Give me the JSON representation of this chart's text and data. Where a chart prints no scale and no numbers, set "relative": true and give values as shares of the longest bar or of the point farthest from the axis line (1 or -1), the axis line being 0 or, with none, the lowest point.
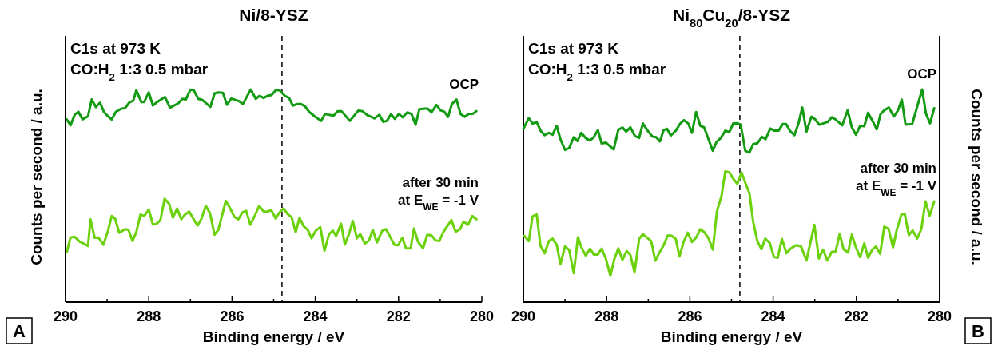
{
  "chart_data": [
    {
      "type": "line",
      "title": "Ni/8-YSZ",
      "xlabel": "Binding energy / eV",
      "ylabel": "Counts per second / a.u.",
      "relative": true,
      "annotations": [
        "C1s at 973 K",
        "CO:H$_{2}$ 1:3 0.5 mbar",
        "A"
      ],
      "xlim": [
        290,
        280
      ],
      "xticks": [
        290,
        {
          "value": 289,
          "label": null
        },
        288,
        {
          "value": 287,
          "label": null
        },
        286,
        {
          "value": 285,
          "label": null
        },
        284,
        {
          "value": 283,
          "label": null
        },
        282,
        {
          "value": 281,
          "label": null
        },
        280
      ],
      "ref_lines": [
        {
          "axis": "x",
          "value": 284.8,
          "line_style": "dashed",
          "color": "#000000"
        }
      ],
      "series": [
        {
          "name": "OCP",
          "color": "#129a12",
          "x": [
            289.97,
            289.88,
            289.78,
            289.69,
            289.59,
            289.46,
            289.37,
            289.27,
            289.17,
            289.08,
            288.98,
            288.89,
            288.79,
            288.66,
            288.57,
            288.47,
            288.37,
            288.3,
            288.18,
            288.11,
            288.0,
            287.9,
            287.8,
            287.61,
            287.49,
            287.29,
            287.19,
            287.11,
            287.0,
            286.92,
            286.81,
            286.71,
            286.52,
            286.42,
            286.33,
            286.22,
            286.12,
            286.02,
            285.83,
            285.74,
            285.55,
            285.43,
            285.34,
            285.24,
            285.14,
            285.05,
            284.95,
            284.86,
            284.73,
            284.63,
            284.54,
            284.44,
            284.34,
            284.25,
            284.15,
            284.02,
            283.86,
            283.77,
            283.56,
            283.46,
            283.37,
            283.17,
            282.97,
            282.87,
            282.74,
            282.58,
            282.46,
            282.37,
            282.28,
            282.18,
            282.09,
            281.99,
            281.9,
            281.79,
            281.69,
            281.59,
            281.5,
            281.37,
            281.3,
            281.21,
            281.09,
            280.99,
            280.9,
            280.81,
            280.72,
            280.61,
            280.51,
            280.41,
            280.31,
            280.22,
            280.13
          ],
          "values": [
            0.859,
            0.831,
            0.881,
            0.895,
            0.859,
            0.874,
            0.953,
            0.917,
            0.938,
            0.895,
            0.874,
            0.859,
            0.895,
            0.91,
            0.912,
            0.938,
            0.948,
            0.996,
            0.941,
            0.941,
            0.986,
            0.924,
            0.941,
            0.964,
            0.914,
            0.935,
            0.956,
            0.953,
            0.999,
            0.996,
            0.956,
            0.95,
            0.918,
            0.981,
            0.986,
            0.984,
            0.928,
            0.957,
            0.945,
            0.931,
            1,
            0.956,
            0.97,
            0.96,
            0.971,
            0.974,
            0.996,
            0.996,
            0.97,
            0.96,
            0.924,
            0.931,
            0.931,
            0.921,
            0.895,
            0.874,
            0.852,
            0.884,
            0.877,
            0.898,
            0.898,
            0.852,
            0.9,
            0.898,
            0.878,
            0.864,
            0.881,
            0.848,
            0.852,
            0.884,
            0.862,
            0.885,
            0.869,
            0.892,
            0.885,
            0.834,
            0.907,
            0.91,
            0.91,
            0.892,
            0.927,
            0.902,
            0.895,
            0.871,
            0.931,
            0.953,
            0.884,
            0.871,
            0.885,
            0.885,
            0.898
          ]
        },
        {
          "name": "after 30 min\nat E$_{WE}$ = -1 V",
          "color": "#6bd10b",
          "x": [
            289.97,
            289.88,
            289.78,
            289.65,
            289.56,
            289.46,
            289.4,
            289.3,
            289.21,
            289.09,
            288.98,
            288.89,
            288.81,
            288.71,
            288.57,
            288.49,
            288.39,
            288.3,
            288.2,
            288.11,
            288.0,
            287.9,
            287.81,
            287.72,
            287.62,
            287.51,
            287.42,
            287.32,
            287.22,
            287.13,
            287.03,
            286.92,
            286.83,
            286.74,
            286.63,
            286.53,
            286.42,
            286.33,
            286.15,
            286.04,
            285.94,
            285.85,
            285.75,
            285.66,
            285.56,
            285.44,
            285.35,
            285.24,
            285.14,
            285.06,
            284.95,
            284.86,
            284.76,
            284.66,
            284.57,
            284.47,
            284.38,
            284.28,
            284.18,
            284.09,
            283.99,
            283.88,
            283.78,
            283.67,
            283.58,
            283.5,
            283.38,
            283.29,
            283.19,
            283.1,
            283.0,
            282.92,
            282.81,
            282.71,
            282.62,
            282.52,
            282.39,
            282.3,
            282.1,
            282.01,
            281.91,
            281.82,
            281.71,
            281.63,
            281.53,
            281.41,
            281.31,
            281.21,
            281.11,
            281.02,
            280.92,
            280.73,
            280.63,
            280.52,
            280.44,
            280.33,
            280.23,
            280.13
          ],
          "values": [
            0.235,
            0.304,
            0.307,
            0.283,
            0.275,
            0.264,
            0.389,
            0.303,
            0.304,
            0.27,
            0.336,
            0.405,
            0.393,
            0.326,
            0.343,
            0.34,
            0.288,
            0.329,
            0.412,
            0.405,
            0.436,
            0.364,
            0.369,
            0.386,
            0.486,
            0.462,
            0.397,
            0.44,
            0.39,
            0.412,
            0.426,
            0.389,
            0.36,
            0.39,
            0.453,
            0.418,
            0.317,
            0.34,
            0.476,
            0.439,
            0.4,
            0.389,
            0.422,
            0.429,
            0.364,
            0.412,
            0.453,
            0.426,
            0.426,
            0.433,
            0.393,
            0.422,
            0.44,
            0.413,
            0.4,
            0.329,
            0.397,
            0.357,
            0.34,
            0.3,
            0.336,
            0.353,
            0.242,
            0.319,
            0.336,
            0.311,
            0.369,
            0.271,
            0.321,
            0.382,
            0.3,
            0.321,
            0.275,
            0.29,
            0.34,
            0.281,
            0.336,
            0.343,
            0.27,
            0.268,
            0.303,
            0.253,
            0.253,
            0.346,
            0.283,
            0.254,
            0.317,
            0.314,
            0.29,
            0.288,
            0.331,
            0.386,
            0.331,
            0.343,
            0.379,
            0.364,
            0.405,
            0.39
          ]
        }
      ]
    },
    {
      "type": "line",
      "title": "Ni$_{80}$Cu$_{20}$/8-YSZ",
      "xlabel": "Binding energy / eV",
      "ylabel": "Counts per second / a.u.",
      "relative": true,
      "annotations": [
        "C1s at 973 K",
        "CO:H$_{2}$ 1:3 0.5 mbar",
        "B"
      ],
      "xlim": [
        290,
        280
      ],
      "xticks": [
        290,
        {
          "value": 289,
          "label": null
        },
        288,
        {
          "value": 287,
          "label": null
        },
        286,
        {
          "value": 285,
          "label": null
        },
        284,
        {
          "value": 283,
          "label": null
        },
        282,
        {
          "value": 281,
          "label": null
        },
        280
      ],
      "ref_lines": [
        {
          "axis": "x",
          "value": 284.8,
          "line_style": "dashed",
          "color": "#000000"
        }
      ],
      "series": [
        {
          "name": "OCP",
          "color": "#129a12",
          "x": [
            290.0,
            289.87,
            289.78,
            289.68,
            289.58,
            289.49,
            289.39,
            289.3,
            289.2,
            289.11,
            289.0,
            288.9,
            288.79,
            288.7,
            288.61,
            288.5,
            288.4,
            288.31,
            288.21,
            288.12,
            288.02,
            287.83,
            287.72,
            287.62,
            287.53,
            287.43,
            287.32,
            287.22,
            287.13,
            287.0,
            286.9,
            286.81,
            286.72,
            286.63,
            286.55,
            286.46,
            286.34,
            286.23,
            286.14,
            286.04,
            285.95,
            285.85,
            285.75,
            285.66,
            285.45,
            285.36,
            285.26,
            285.15,
            285.05,
            284.96,
            284.86,
            284.78,
            284.67,
            284.57,
            284.48,
            284.38,
            284.27,
            284.18,
            284.07,
            283.97,
            283.87,
            283.77,
            283.69,
            283.58,
            283.49,
            283.39,
            283.3,
            283.2,
            283.08,
            282.99,
            282.89,
            282.69,
            282.59,
            282.5,
            282.34,
            282.21,
            282.11,
            282.01,
            281.91,
            281.81,
            281.72,
            281.6,
            281.51,
            281.42,
            281.33,
            281.22,
            281.1,
            281.0,
            280.91,
            280.82,
            280.66,
            280.42,
            280.33,
            280.23,
            280.13
          ],
          "values": [
            0.815,
            0.865,
            0.84,
            0.846,
            0.804,
            0.785,
            0.796,
            0.787,
            0.829,
            0.766,
            0.716,
            0.725,
            0.775,
            0.758,
            0.796,
            0.771,
            0.76,
            0.775,
            0.809,
            0.746,
            0.75,
            0.718,
            0.81,
            0.821,
            0.802,
            0.822,
            0.781,
            0.772,
            0.84,
            0.802,
            0.778,
            0.775,
            0.756,
            0.809,
            0.815,
            0.783,
            0.806,
            0.84,
            0.856,
            0.84,
            0.796,
            0.894,
            0.829,
            0.822,
            0.712,
            0.753,
            0.771,
            0.806,
            0.8,
            0.84,
            0.841,
            0.835,
            0.712,
            0.703,
            0.743,
            0.747,
            0.777,
            0.766,
            0.816,
            0.806,
            0.806,
            0.837,
            0.837,
            0.802,
            0.785,
            0.841,
            0.915,
            0.802,
            0.872,
            0.859,
            0.834,
            0.847,
            0.869,
            0.859,
            0.831,
            0.902,
            0.822,
            0.787,
            0.829,
            0.827,
            0.89,
            0.847,
            0.812,
            0.884,
            0.902,
            0.915,
            0.872,
            0.902,
            0.952,
            0.835,
            0.837,
            1,
            0.887,
            0.841,
            0.912
          ]
        },
        {
          "name": "after 30 min\nat E$_{WE}$ = -1 V",
          "color": "#6bd10b",
          "x": [
            289.98,
            289.87,
            289.78,
            289.68,
            289.59,
            289.49,
            289.39,
            289.3,
            289.2,
            289.11,
            289.0,
            288.9,
            288.79,
            288.69,
            288.6,
            288.5,
            288.4,
            288.31,
            288.21,
            288.12,
            288.02,
            287.91,
            287.81,
            287.72,
            287.62,
            287.52,
            287.43,
            287.33,
            287.22,
            287.13,
            287.03,
            286.93,
            286.83,
            286.74,
            286.63,
            286.53,
            286.44,
            286.34,
            286.25,
            286.15,
            286.05,
            285.95,
            285.85,
            285.75,
            285.66,
            285.55,
            285.45,
            285.35,
            285.24,
            285.15,
            285.05,
            284.96,
            284.86,
            284.76,
            284.67,
            284.57,
            284.48,
            284.38,
            284.28,
            284.19,
            284.08,
            283.98,
            283.89,
            283.79,
            283.68,
            283.58,
            283.45,
            283.33,
            283.2,
            283.01,
            282.9,
            282.8,
            282.7,
            282.59,
            282.5,
            282.4,
            282.31,
            282.2,
            282.11,
            282.02,
            281.91,
            281.81,
            281.72,
            281.62,
            281.53,
            281.43,
            281.33,
            281.23,
            281.12,
            281.03,
            280.92,
            280.84,
            280.74,
            280.65,
            280.54,
            280.44,
            280.34,
            280.24,
            280.13
          ],
          "values": [
            0.312,
            0.287,
            0.403,
            0.412,
            0.265,
            0.23,
            0.287,
            0.299,
            0.27,
            0.178,
            0.262,
            0.245,
            0.136,
            0.305,
            0.255,
            0.218,
            0.252,
            0.224,
            0.224,
            0.252,
            0.205,
            0.124,
            0.205,
            0.253,
            0.199,
            0.24,
            0.222,
            0.139,
            0.297,
            0.32,
            0.303,
            0.287,
            0.195,
            0.23,
            0.268,
            0.314,
            0.312,
            0.297,
            0.215,
            0.284,
            0.327,
            0.283,
            0.303,
            0.343,
            0.33,
            0.299,
            0.247,
            0.427,
            0.499,
            0.615,
            0.61,
            0.581,
            0.556,
            0.61,
            0.562,
            0.512,
            0.378,
            0.287,
            0.249,
            0.299,
            0.278,
            0.212,
            0.209,
            0.297,
            0.23,
            0.252,
            0.268,
            0.262,
            0.196,
            0.364,
            0.205,
            0.247,
            0.196,
            0.237,
            0.237,
            0.322,
            0.249,
            0.233,
            0.318,
            0.262,
            0.212,
            0.277,
            0.209,
            0.247,
            0.262,
            0.227,
            0.355,
            0.345,
            0.258,
            0.34,
            0.412,
            0.416,
            0.315,
            0.337,
            0.299,
            0.343,
            0.474,
            0.406,
            0.474
          ]
        }
      ]
    }
  ]
}
